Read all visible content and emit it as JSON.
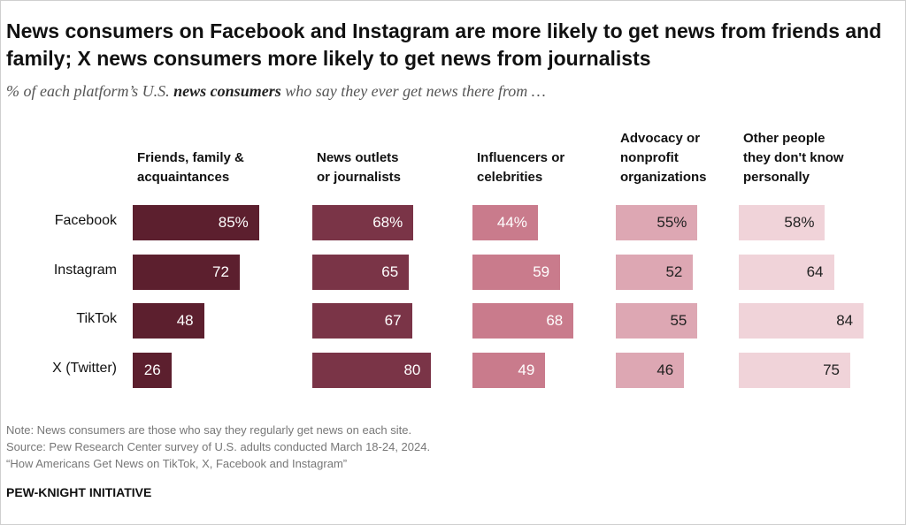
{
  "title": "News consumers on Facebook and Instagram are more likely to get news from friends and family; X news consumers more likely to get news from journalists",
  "subtitle": {
    "before": "% of each platform’s U.S. ",
    "bold": "news consumers",
    "after": " who say they ever get news there from …"
  },
  "chart_data": {
    "type": "bar",
    "categories": [
      "Facebook",
      "Instagram",
      "TikTok",
      "X (Twitter)"
    ],
    "series": [
      {
        "name": "Friends, family &\nacquaintances",
        "values": [
          85,
          72,
          48,
          26
        ],
        "labels": [
          "85%",
          "72",
          "48",
          "26"
        ],
        "color": "#5c1f2e",
        "label_color": "#ffffff"
      },
      {
        "name": "News outlets\nor journalists",
        "values": [
          68,
          65,
          67,
          80
        ],
        "labels": [
          "68%",
          "65",
          "67",
          "80"
        ],
        "color": "#7a3447",
        "label_color": "#ffffff"
      },
      {
        "name": "Influencers or\ncelebrities",
        "values": [
          44,
          59,
          68,
          49
        ],
        "labels": [
          "44%",
          "59",
          "68",
          "49"
        ],
        "color": "#c97b8c",
        "label_color": "#ffffff"
      },
      {
        "name": "Advocacy or\nnonprofit\norganizations",
        "values": [
          55,
          52,
          55,
          46
        ],
        "labels": [
          "55%",
          "52",
          "55",
          "46"
        ],
        "color": "#dda7b3",
        "label_color": "#222222"
      },
      {
        "name": "Other people\nthey don't know\npersonally",
        "values": [
          58,
          64,
          84,
          75
        ],
        "labels": [
          "58%",
          "64",
          "84",
          "75"
        ],
        "color": "#f0d3d9",
        "label_color": "#222222"
      }
    ],
    "xlim": [
      0,
      100
    ]
  },
  "notes": [
    "Note: News consumers are those who say they regularly get news on each site.",
    "Source: Pew Research Center survey of U.S. adults conducted March 18-24, 2024.",
    "“How Americans Get News on TikTok, X, Facebook and Instagram”"
  ],
  "brand": "PEW-KNIGHT INITIATIVE"
}
